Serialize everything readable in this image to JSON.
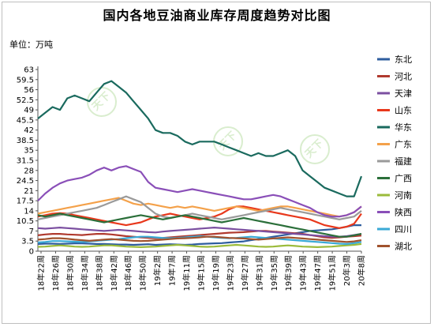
{
  "chart_data": {
    "type": "line",
    "title": "国内各地豆油商业库存周度趋势对比图",
    "unit_label": "单位：万吨",
    "ylim": [
      0,
      63
    ],
    "y_ticks": [
      0,
      3.5,
      7,
      10.5,
      14,
      17.5,
      21,
      24.5,
      28,
      31.5,
      35,
      38.5,
      42,
      45.5,
      49,
      52.5,
      56,
      59.5,
      63
    ],
    "x_tick_labels": [
      "18年22周",
      "18年26周",
      "18年30周",
      "18年34周",
      "18年38周",
      "18年42周",
      "18年46周",
      "18年50周",
      "19年2周",
      "19年7周",
      "19年11周",
      "19年15周",
      "19年19周",
      "19年23周",
      "19年27周",
      "19年31周",
      "19年35周",
      "19年39周",
      "19年43周",
      "19年47周",
      "19年51周",
      "20年3周",
      "20年8周"
    ],
    "series": [
      {
        "name": "东北",
        "color": "#2e5d9e",
        "values": [
          2.5,
          2.6,
          2.6,
          2.5,
          2.6,
          2.7,
          2.7,
          2.6,
          2.5,
          2.5,
          2.4,
          2.3,
          2.3,
          2.2,
          2.3,
          2.4,
          2.2,
          2.3,
          2.4,
          2.3,
          2.2,
          2.3,
          2.5,
          2.6,
          2.7,
          2.8,
          3.0,
          3.2,
          3.4,
          3.8,
          4.2,
          4.6,
          5.0,
          5.4,
          5.8,
          6.2,
          6.6,
          7.0,
          7.2,
          7.4,
          7.6,
          8.0,
          8.5,
          9.0,
          9.0
        ]
      },
      {
        "name": "河北",
        "color": "#b03a2e",
        "values": [
          5.5,
          5.8,
          6.0,
          6.0,
          5.8,
          5.7,
          5.6,
          5.8,
          6.0,
          6.0,
          5.8,
          5.5,
          5.2,
          5.0,
          4.8,
          4.6,
          4.5,
          4.6,
          4.8,
          5.0,
          5.2,
          5.4,
          5.6,
          5.8,
          6.0,
          6.2,
          6.4,
          6.5,
          6.6,
          6.8,
          7.0,
          7.0,
          6.8,
          6.6,
          6.4,
          6.2,
          6.0,
          5.6,
          5.2,
          4.8,
          4.6,
          4.8,
          5.0,
          5.2,
          5.4
        ]
      },
      {
        "name": "天津",
        "color": "#7b4fa0",
        "values": [
          8.0,
          7.8,
          8.0,
          8.2,
          8.0,
          7.8,
          7.6,
          7.4,
          7.2,
          7.0,
          7.2,
          7.4,
          7.2,
          7.0,
          6.8,
          6.6,
          6.5,
          6.8,
          7.0,
          7.2,
          7.4,
          7.6,
          7.8,
          8.0,
          8.2,
          8.0,
          7.8,
          7.6,
          7.4,
          7.2,
          7.0,
          6.8,
          6.6,
          6.4,
          6.2,
          6.0,
          5.8,
          5.6,
          5.4,
          5.2,
          5.0,
          5.0,
          5.2,
          5.6,
          6.0
        ]
      },
      {
        "name": "山东",
        "color": "#e8381c",
        "values": [
          12.0,
          12.5,
          13.0,
          13.2,
          13.0,
          12.5,
          12.0,
          11.5,
          11.0,
          10.5,
          10.0,
          9.5,
          9.0,
          9.5,
          10.0,
          11.0,
          12.0,
          12.5,
          13.0,
          12.5,
          12.0,
          11.5,
          11.0,
          11.5,
          12.0,
          13.0,
          14.5,
          15.5,
          15.5,
          15.0,
          14.5,
          14.0,
          13.5,
          13.0,
          12.5,
          12.0,
          11.5,
          11.0,
          10.0,
          9.0,
          8.5,
          8.0,
          8.5,
          9.5,
          13.0
        ]
      },
      {
        "name": "华东",
        "color": "#1a6a5e",
        "values": [
          46,
          48,
          50,
          49,
          53,
          54,
          53,
          52,
          55,
          58,
          59,
          57,
          55,
          52,
          49,
          46,
          42,
          41,
          41,
          40,
          38,
          37,
          38,
          38,
          38,
          37,
          36,
          35,
          34,
          33,
          34,
          33,
          33,
          34,
          35,
          33,
          28,
          26,
          24,
          22,
          21,
          20,
          19,
          19,
          26
        ]
      },
      {
        "name": "广东",
        "color": "#f4a14a",
        "values": [
          13.0,
          13.5,
          14.0,
          14.5,
          15.0,
          15.5,
          16.0,
          16.5,
          17.0,
          17.5,
          18.0,
          18.5,
          17.5,
          16.5,
          16.0,
          16.5,
          16.0,
          15.5,
          15.0,
          15.5,
          15.0,
          15.5,
          15.0,
          14.5,
          14.0,
          14.5,
          15.0,
          15.5,
          15.0,
          14.5,
          14.0,
          14.5,
          15.0,
          15.5,
          15.5,
          15.0,
          14.5,
          14.0,
          13.5,
          13.0,
          12.5,
          12.0,
          12.5,
          13.5,
          15.5
        ]
      },
      {
        "name": "福建",
        "color": "#9a9a9a",
        "values": [
          11.0,
          11.5,
          12.0,
          12.5,
          13.0,
          13.5,
          14.0,
          14.5,
          15.0,
          16.0,
          17.0,
          18.0,
          19.0,
          18.0,
          17.0,
          15.0,
          13.0,
          12.0,
          11.5,
          12.0,
          12.5,
          13.0,
          12.5,
          12.0,
          11.5,
          11.0,
          11.5,
          12.0,
          12.5,
          13.0,
          13.5,
          14.0,
          14.5,
          15.0,
          14.5,
          14.0,
          13.5,
          13.0,
          12.5,
          12.0,
          11.5,
          11.0,
          11.5,
          12.0,
          14.0
        ]
      },
      {
        "name": "广西",
        "color": "#2b6f3a",
        "values": [
          12.5,
          12.0,
          12.5,
          13.0,
          12.5,
          12.0,
          11.5,
          11.0,
          10.5,
          10.0,
          10.5,
          11.0,
          11.5,
          12.0,
          12.5,
          12.0,
          11.5,
          11.0,
          11.5,
          12.0,
          12.5,
          12.0,
          11.5,
          11.0,
          10.5,
          10.0,
          10.5,
          11.0,
          11.5,
          11.0,
          10.5,
          10.0,
          9.5,
          9.0,
          8.5,
          8.0,
          7.5,
          7.0,
          6.5,
          6.0,
          5.5,
          5.0,
          5.0,
          5.5,
          6.0
        ]
      },
      {
        "name": "河南",
        "color": "#9bbb3b",
        "values": [
          1.5,
          1.6,
          1.8,
          2.0,
          1.8,
          1.6,
          1.5,
          1.6,
          1.8,
          2.0,
          2.0,
          1.8,
          1.6,
          1.5,
          1.4,
          1.5,
          1.6,
          1.8,
          2.0,
          2.2,
          2.0,
          1.8,
          1.6,
          1.5,
          1.6,
          1.8,
          2.0,
          2.2,
          2.0,
          1.8,
          1.6,
          1.5,
          1.6,
          1.8,
          2.0,
          1.8,
          1.6,
          1.5,
          1.4,
          1.5,
          1.6,
          1.8,
          2.0,
          2.2,
          2.5
        ]
      },
      {
        "name": "陕西",
        "color": "#8a4fb8",
        "values": [
          17.5,
          20.0,
          22.0,
          23.5,
          24.5,
          25.0,
          25.5,
          26.5,
          28.0,
          29.0,
          28.0,
          29.0,
          29.5,
          28.5,
          27.5,
          24.0,
          22.0,
          21.5,
          21.0,
          20.5,
          21.0,
          21.5,
          21.0,
          20.5,
          20.0,
          19.5,
          19.0,
          18.5,
          18.0,
          18.0,
          18.5,
          19.0,
          19.5,
          19.0,
          18.0,
          17.0,
          16.0,
          15.0,
          13.5,
          12.5,
          12.0,
          12.0,
          12.5,
          13.5,
          15.5
        ]
      },
      {
        "name": "四川",
        "color": "#3aaad6",
        "values": [
          3.0,
          3.2,
          3.5,
          3.5,
          3.4,
          3.3,
          3.2,
          3.4,
          3.6,
          3.8,
          4.0,
          4.2,
          4.5,
          4.8,
          5.0,
          5.0,
          4.8,
          4.6,
          4.5,
          4.6,
          4.8,
          5.0,
          5.2,
          5.0,
          4.8,
          4.6,
          4.5,
          4.6,
          4.8,
          5.0,
          4.8,
          4.6,
          4.4,
          4.2,
          4.0,
          3.8,
          3.6,
          3.4,
          3.2,
          3.0,
          2.8,
          2.6,
          2.5,
          2.8,
          3.2
        ]
      },
      {
        "name": "湖北",
        "color": "#a0522d",
        "values": [
          4.0,
          4.2,
          4.5,
          4.5,
          4.3,
          4.0,
          3.8,
          3.6,
          3.8,
          4.0,
          4.2,
          4.0,
          3.8,
          3.6,
          3.5,
          3.6,
          3.8,
          4.0,
          4.2,
          4.4,
          4.5,
          4.6,
          4.8,
          5.0,
          5.0,
          4.8,
          4.6,
          4.5,
          4.4,
          4.2,
          4.0,
          4.2,
          4.4,
          4.6,
          4.8,
          4.6,
          4.4,
          4.2,
          4.0,
          3.8,
          3.6,
          3.4,
          3.2,
          3.4,
          3.8
        ]
      }
    ],
    "legend_position": "right",
    "grid": false
  }
}
